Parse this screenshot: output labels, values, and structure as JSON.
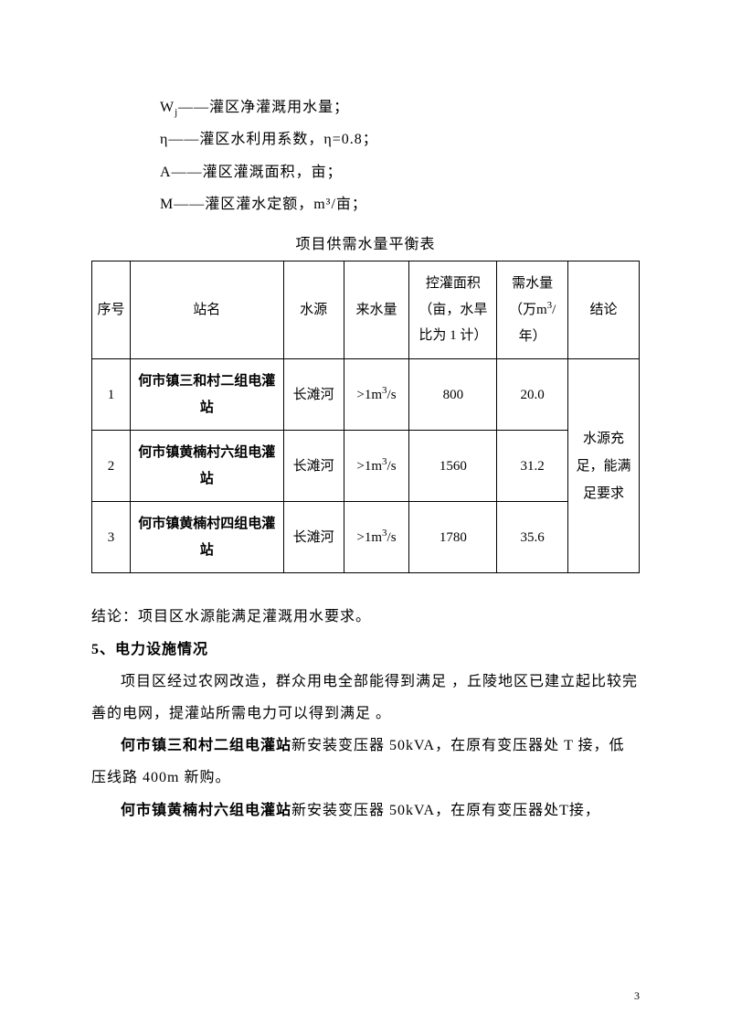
{
  "definitions": [
    {
      "symbol": "W",
      "subscript": "j",
      "text": "——灌区净灌溉用水量；"
    },
    {
      "symbol": "η",
      "subscript": "",
      "text": "——灌区水利用系数，η=0.8；"
    },
    {
      "symbol": "A",
      "subscript": "",
      "text": "——灌区灌溉面积，亩；"
    },
    {
      "symbol": "M",
      "subscript": "",
      "text": "——灌区灌水定额，m³/亩；"
    }
  ],
  "table": {
    "title": "项目供需水量平衡表",
    "headers": {
      "seq": "序号",
      "name": "站名",
      "source": "水源",
      "inflow": "来水量",
      "area": "控灌面积（亩，水旱比为 1 计）",
      "demand": "需水量（万m³/年）",
      "conclusion": "结论"
    },
    "rows": [
      {
        "seq": "1",
        "name": "何市镇三和村二组电灌站",
        "source": "长滩河",
        "inflow": ">1m³/s",
        "area": "800",
        "demand": "20.0"
      },
      {
        "seq": "2",
        "name": "何市镇黄楠村六组电灌站",
        "source": "长滩河",
        "inflow": ">1m³/s",
        "area": "1560",
        "demand": "31.2"
      },
      {
        "seq": "3",
        "name": "何市镇黄楠村四组电灌站",
        "source": "长滩河",
        "inflow": ">1m³/s",
        "area": "1780",
        "demand": "35.6"
      }
    ],
    "conclusion_merged": "水源充足，能满足要求"
  },
  "conclusion_line": "结论：项目区水源能满足灌溉用水要求。",
  "section5": {
    "heading": "5、电力设施情况",
    "para1": "项目区经过农网改造，群众用电全部能得到满足 ，丘陵地区已建立起比较完善的电网，提灌站所需电力可以得到满足 。",
    "station1_bold": "何市镇三和村二组电灌站",
    "station1_text": "新安装变压器 50kVA，在原有变压器处 T 接，低压线路 400m 新购。",
    "station2_bold": "何市镇黄楠村六组电灌站",
    "station2_text": "新安装变压器 50kVA，在原有变压器处T接，"
  },
  "page_number": "3"
}
